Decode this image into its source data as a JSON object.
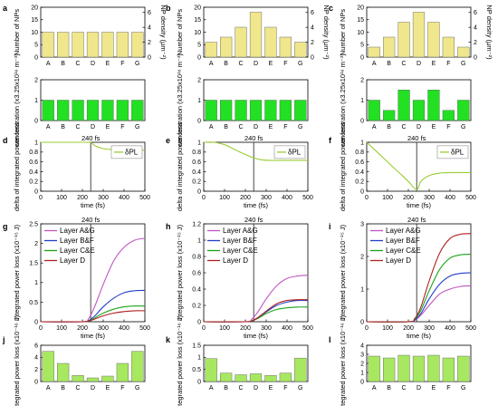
{
  "chart_data": [
    {
      "panel": "a",
      "type": "bar",
      "color": "#f0e68c",
      "categories": [
        "A",
        "B",
        "C",
        "D",
        "E",
        "F",
        "G"
      ],
      "values": [
        10,
        10,
        10,
        10,
        10,
        10,
        10
      ],
      "ylim": [
        0,
        20
      ],
      "yticks": [
        0,
        5,
        10,
        15,
        20
      ],
      "ylabel": "Number of NPs",
      "right_axis": {
        "label": "NP density (μm⁻²)",
        "ylim": [
          0,
          6.7
        ],
        "yticks": [
          0,
          2,
          4,
          6
        ]
      }
    },
    {
      "panel": "b",
      "type": "bar",
      "color": "#f0e68c",
      "categories": [
        "A",
        "B",
        "C",
        "D",
        "E",
        "F",
        "G"
      ],
      "values": [
        6,
        8,
        12,
        18,
        12,
        8,
        6
      ],
      "ylim": [
        0,
        20
      ],
      "yticks": [
        0,
        5,
        10,
        15,
        20
      ],
      "ylabel": "Number of NPs",
      "right_axis": {
        "label": "NP density (μm⁻²)",
        "ylim": [
          0,
          6.7
        ],
        "yticks": [
          0,
          2,
          4,
          6
        ]
      }
    },
    {
      "panel": "c",
      "type": "bar",
      "color": "#f0e68c",
      "categories": [
        "A",
        "B",
        "C",
        "D",
        "E",
        "F",
        "G"
      ],
      "values": [
        4,
        8,
        14,
        18,
        14,
        8,
        4
      ],
      "ylim": [
        0,
        20
      ],
      "yticks": [
        0,
        5,
        10,
        15,
        20
      ],
      "ylabel": "Number of NPs",
      "right_axis": {
        "label": "NP density (μm⁻²)",
        "ylim": [
          0,
          6.7
        ],
        "yticks": [
          0,
          2,
          4,
          6
        ]
      }
    },
    {
      "panel": "a2",
      "type": "bar",
      "color": "#22e022",
      "categories": [
        "A",
        "B",
        "C",
        "D",
        "E",
        "F",
        "G"
      ],
      "values": [
        1,
        1,
        1,
        1,
        1,
        1,
        1
      ],
      "ylim": [
        0,
        2
      ],
      "yticks": [
        0,
        1,
        2
      ],
      "ylabel": "concentration (x3.25x10¹⁶ m⁻³)"
    },
    {
      "panel": "b2",
      "type": "bar",
      "color": "#22e022",
      "categories": [
        "A",
        "B",
        "C",
        "D",
        "E",
        "F",
        "G"
      ],
      "values": [
        1,
        1,
        1,
        1,
        1,
        1,
        1
      ],
      "ylim": [
        0,
        2
      ],
      "yticks": [
        0,
        1,
        2
      ],
      "ylabel": "concentration (x3.25x10¹⁶ m⁻³)"
    },
    {
      "panel": "c2",
      "type": "bar",
      "color": "#22e022",
      "categories": [
        "A",
        "B",
        "C",
        "D",
        "E",
        "F",
        "G"
      ],
      "values": [
        1,
        0.5,
        1.5,
        1,
        1.5,
        0.5,
        1
      ],
      "ylim": [
        0,
        2
      ],
      "yticks": [
        0,
        1,
        2
      ],
      "ylabel": "concentration (x3.25x10¹⁶ m⁻³)"
    },
    {
      "panel": "d",
      "type": "line",
      "title": "240 fs",
      "xlabel": "time (fs)",
      "ylabel": "delta of integrated power loss",
      "xlim": [
        0,
        500
      ],
      "xticks": [
        0,
        100,
        200,
        300,
        400,
        500
      ],
      "ylim": [
        0,
        1
      ],
      "yticks": [
        0,
        0.2,
        0.4,
        0.6,
        0.8,
        1.0
      ],
      "vline": 240,
      "series": [
        {
          "name": "δPL",
          "color": "#9acd32",
          "x": [
            0,
            100,
            200,
            230,
            240,
            260,
            300,
            350,
            400,
            450,
            500
          ],
          "y": [
            1.0,
            1.0,
            1.0,
            1.0,
            1.0,
            0.93,
            0.87,
            0.85,
            0.84,
            0.84,
            0.84
          ]
        }
      ]
    },
    {
      "panel": "e",
      "type": "line",
      "title": "240 fs",
      "xlabel": "time (fs)",
      "ylabel": "delta of integrated power loss",
      "xlim": [
        0,
        500
      ],
      "xticks": [
        0,
        100,
        200,
        300,
        400,
        500
      ],
      "ylim": [
        0,
        1
      ],
      "yticks": [
        0,
        0.2,
        0.4,
        0.6,
        0.8,
        1.0
      ],
      "vline": 240,
      "series": [
        {
          "name": "δPL",
          "color": "#9acd32",
          "x": [
            0,
            50,
            100,
            150,
            200,
            240,
            280,
            320,
            360,
            400,
            450,
            500
          ],
          "y": [
            1.0,
            1.0,
            0.95,
            0.85,
            0.75,
            0.68,
            0.64,
            0.63,
            0.63,
            0.63,
            0.63,
            0.63
          ]
        }
      ]
    },
    {
      "panel": "f",
      "type": "line",
      "title": "240 fs",
      "xlabel": "time (fs)",
      "ylabel": "delta of integrated power loss",
      "xlim": [
        0,
        500
      ],
      "xticks": [
        0,
        100,
        200,
        300,
        400,
        500
      ],
      "ylim": [
        0,
        1
      ],
      "yticks": [
        0,
        0.2,
        0.4,
        0.6,
        0.8,
        1.0
      ],
      "vline": 240,
      "series": [
        {
          "name": "δPL",
          "color": "#9acd32",
          "x": [
            0,
            50,
            100,
            150,
            200,
            240,
            260,
            300,
            350,
            400,
            450,
            500
          ],
          "y": [
            1.0,
            0.8,
            0.6,
            0.4,
            0.2,
            0.03,
            0.2,
            0.32,
            0.37,
            0.38,
            0.38,
            0.38
          ]
        }
      ]
    },
    {
      "panel": "g",
      "type": "line",
      "title": "240 fs",
      "xlabel": "time (fs)",
      "ylabel": "Integrated power loss (x10⁻¹⁵ J)",
      "xlim": [
        0,
        500
      ],
      "xticks": [
        0,
        100,
        200,
        300,
        400,
        500
      ],
      "ylim": [
        0,
        2.5
      ],
      "yticks": [
        0,
        0.5,
        1.0,
        1.5,
        2.0,
        2.5
      ],
      "vline": 240,
      "series": [
        {
          "name": "Layer A&G",
          "color": "#c154c1",
          "x": [
            0,
            200,
            230,
            260,
            300,
            350,
            400,
            450,
            500
          ],
          "y": [
            0,
            0,
            0.08,
            0.4,
            0.95,
            1.55,
            1.9,
            2.08,
            2.13
          ]
        },
        {
          "name": "Layer B&F",
          "color": "#1f3fc8",
          "x": [
            0,
            200,
            230,
            260,
            300,
            350,
            400,
            450,
            500
          ],
          "y": [
            0,
            0,
            0.03,
            0.15,
            0.38,
            0.6,
            0.74,
            0.79,
            0.8
          ]
        },
        {
          "name": "Layer C&E",
          "color": "#1aa31a",
          "x": [
            0,
            200,
            230,
            260,
            300,
            350,
            400,
            450,
            500
          ],
          "y": [
            0,
            0,
            0.02,
            0.1,
            0.22,
            0.32,
            0.38,
            0.4,
            0.4
          ]
        },
        {
          "name": "Layer D",
          "color": "#b02020",
          "x": [
            0,
            200,
            230,
            260,
            300,
            350,
            400,
            450,
            500
          ],
          "y": [
            0,
            0,
            0.02,
            0.07,
            0.15,
            0.22,
            0.26,
            0.28,
            0.28
          ]
        }
      ]
    },
    {
      "panel": "h",
      "type": "line",
      "title": "240 fs",
      "xlabel": "time (fs)",
      "ylabel": "Integrated power loss (x10⁻¹⁵ J)",
      "xlim": [
        0,
        500
      ],
      "xticks": [
        0,
        100,
        200,
        300,
        400,
        500
      ],
      "ylim": [
        0,
        1.2
      ],
      "yticks": [
        0,
        0.2,
        0.4,
        0.6,
        0.8,
        1.0,
        1.2
      ],
      "vline": 240,
      "series": [
        {
          "name": "Layer A&G",
          "color": "#c154c1",
          "x": [
            0,
            200,
            230,
            260,
            300,
            350,
            400,
            450,
            500
          ],
          "y": [
            0,
            0,
            0.03,
            0.12,
            0.28,
            0.44,
            0.53,
            0.56,
            0.57
          ]
        },
        {
          "name": "Layer B&F",
          "color": "#1f3fc8",
          "x": [
            0,
            200,
            230,
            260,
            300,
            350,
            400,
            450,
            500
          ],
          "y": [
            0,
            0,
            0.01,
            0.05,
            0.12,
            0.2,
            0.24,
            0.26,
            0.26
          ]
        },
        {
          "name": "Layer C&E",
          "color": "#1aa31a",
          "x": [
            0,
            200,
            230,
            260,
            300,
            350,
            400,
            450,
            500
          ],
          "y": [
            0,
            0,
            0.01,
            0.04,
            0.1,
            0.15,
            0.17,
            0.18,
            0.18
          ]
        },
        {
          "name": "Layer D",
          "color": "#b02020",
          "x": [
            0,
            200,
            230,
            260,
            300,
            350,
            400,
            450,
            500
          ],
          "y": [
            0,
            0,
            0.01,
            0.05,
            0.13,
            0.22,
            0.26,
            0.27,
            0.27
          ]
        }
      ]
    },
    {
      "panel": "i",
      "type": "line",
      "title": "240 fs",
      "xlabel": "time (fs)",
      "ylabel": "Integrated power loss (x10⁻¹⁵ J)",
      "xlim": [
        0,
        500
      ],
      "xticks": [
        0,
        100,
        200,
        300,
        400,
        500
      ],
      "ylim": [
        0,
        3
      ],
      "yticks": [
        0,
        1,
        2,
        3
      ],
      "vline": 240,
      "series": [
        {
          "name": "Layer A&G",
          "color": "#c154c1",
          "x": [
            0,
            200,
            230,
            260,
            300,
            350,
            400,
            450,
            500
          ],
          "y": [
            0,
            0,
            0.04,
            0.2,
            0.5,
            0.85,
            1.0,
            1.08,
            1.1
          ]
        },
        {
          "name": "Layer B&F",
          "color": "#1f3fc8",
          "x": [
            0,
            200,
            230,
            260,
            300,
            350,
            400,
            450,
            500
          ],
          "y": [
            0,
            0,
            0.05,
            0.25,
            0.7,
            1.15,
            1.4,
            1.48,
            1.5
          ]
        },
        {
          "name": "Layer C&E",
          "color": "#1aa31a",
          "x": [
            0,
            200,
            230,
            260,
            300,
            350,
            400,
            450,
            500
          ],
          "y": [
            0,
            0,
            0.07,
            0.35,
            0.95,
            1.6,
            1.95,
            2.05,
            2.07
          ]
        },
        {
          "name": "Layer D",
          "color": "#b02020",
          "x": [
            0,
            200,
            230,
            260,
            300,
            350,
            400,
            450,
            500
          ],
          "y": [
            0,
            0,
            0.09,
            0.45,
            1.25,
            2.1,
            2.55,
            2.68,
            2.7
          ]
        }
      ]
    },
    {
      "panel": "j",
      "type": "bar",
      "color": "#a8e860",
      "categories": [
        "A",
        "B",
        "C",
        "D",
        "E",
        "F",
        "G"
      ],
      "values": [
        5,
        3,
        1,
        0.6,
        0.9,
        3,
        5
      ],
      "ylim": [
        0,
        6
      ],
      "yticks": [
        0,
        2,
        4,
        6
      ],
      "ylabel": "Integrated power loss (x10⁻¹⁶ J)"
    },
    {
      "panel": "k",
      "type": "bar",
      "color": "#a8e860",
      "categories": [
        "A",
        "B",
        "C",
        "D",
        "E",
        "F",
        "G"
      ],
      "values": [
        0.95,
        0.35,
        0.28,
        0.32,
        0.25,
        0.35,
        0.97
      ],
      "ylim": [
        0,
        1.5
      ],
      "yticks": [
        0,
        0.5,
        1.0,
        1.5
      ],
      "ylabel": "Integrated power loss (x10⁻¹⁶ J)"
    },
    {
      "panel": "l",
      "type": "bar",
      "color": "#a8e860",
      "categories": [
        "A",
        "B",
        "C",
        "D",
        "E",
        "F",
        "G"
      ],
      "values": [
        2.8,
        2.6,
        2.9,
        2.8,
        2.9,
        2.6,
        2.8
      ],
      "ylim": [
        0,
        4
      ],
      "yticks": [
        0,
        1,
        2,
        3,
        4
      ],
      "ylabel": "Integrated power loss (x10⁻¹⁶ J)"
    }
  ]
}
